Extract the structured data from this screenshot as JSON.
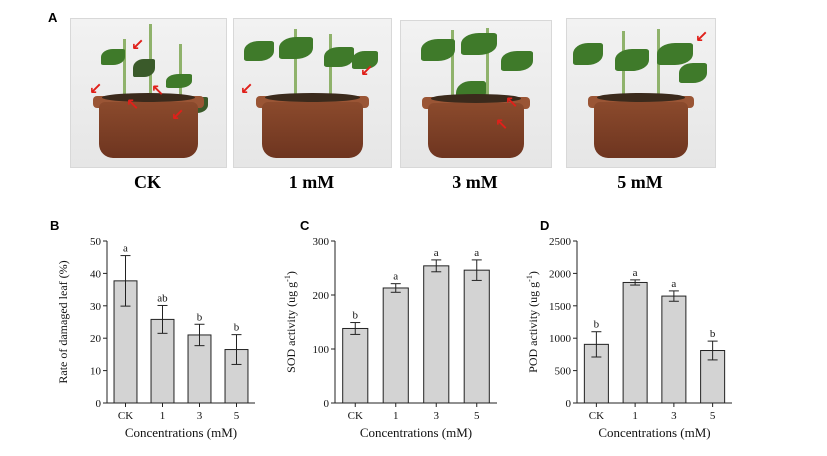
{
  "panel_a": {
    "letter": "A",
    "photos": [
      {
        "label": "CK"
      },
      {
        "label": "1 mM"
      },
      {
        "label": "3 mM"
      },
      {
        "label": "5 mM"
      }
    ]
  },
  "chart_data": [
    {
      "panel": "B",
      "type": "bar",
      "categories": [
        "CK",
        "1",
        "3",
        "5"
      ],
      "values": [
        37.7,
        25.8,
        21.0,
        16.5
      ],
      "errors": [
        7.8,
        4.3,
        3.3,
        4.6
      ],
      "significance": [
        "a",
        "ab",
        "b",
        "b"
      ],
      "xlabel": "Concentrations (mM)",
      "ylabel": "Rate of damaged leaf  (%)",
      "ylim": [
        0,
        50
      ],
      "yticks": [
        "0",
        "10",
        "20",
        "30",
        "40",
        "50"
      ]
    },
    {
      "panel": "C",
      "type": "bar",
      "categories": [
        "CK",
        "1",
        "3",
        "5"
      ],
      "values": [
        138,
        213,
        254,
        246
      ],
      "errors": [
        11,
        8,
        11,
        19
      ],
      "significance": [
        "b",
        "a",
        "a",
        "a"
      ],
      "xlabel": "Concentrations (mM)",
      "ylabel": "SOD activity  (ug g",
      "ylabel_sup": "-1",
      "ylabel_end": ")",
      "ylim": [
        0,
        300
      ],
      "yticks": [
        "0",
        "100",
        "200",
        "300"
      ]
    },
    {
      "panel": "D",
      "type": "bar",
      "categories": [
        "CK",
        "1",
        "3",
        "5"
      ],
      "values": [
        905,
        1860,
        1650,
        810
      ],
      "errors": [
        195,
        40,
        80,
        145
      ],
      "significance": [
        "b",
        "a",
        "a",
        "b"
      ],
      "xlabel": "Concentrations (mM)",
      "ylabel": "POD activity  (ug g",
      "ylabel_sup": "-1",
      "ylabel_end": ")",
      "ylim": [
        0,
        2500
      ],
      "yticks": [
        "0",
        "500",
        "1000",
        "1500",
        "2000",
        "2500"
      ]
    }
  ],
  "colors": {
    "bar_fill": "#d3d3d3",
    "bar_stroke": "#222222",
    "arrow": "#e0201a"
  }
}
